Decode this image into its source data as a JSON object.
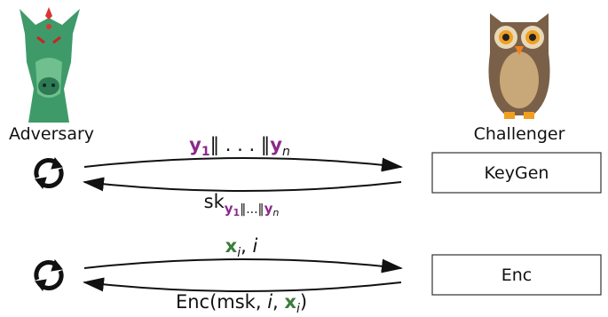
{
  "actors": {
    "adversary": "Adversary",
    "challenger": "Challenger"
  },
  "boxes": [
    "KeyGen",
    "Enc"
  ],
  "messages": [
    [
      "y",
      "1",
      "‖ . . . ‖",
      "y",
      "n"
    ],
    [
      "sk",
      "y",
      "1",
      "‖...‖",
      "y",
      "n"
    ],
    [
      "x",
      "i",
      ", ",
      "i"
    ],
    [
      "Enc(msk, ",
      "i",
      ", ",
      "x",
      "i",
      ")"
    ]
  ]
}
